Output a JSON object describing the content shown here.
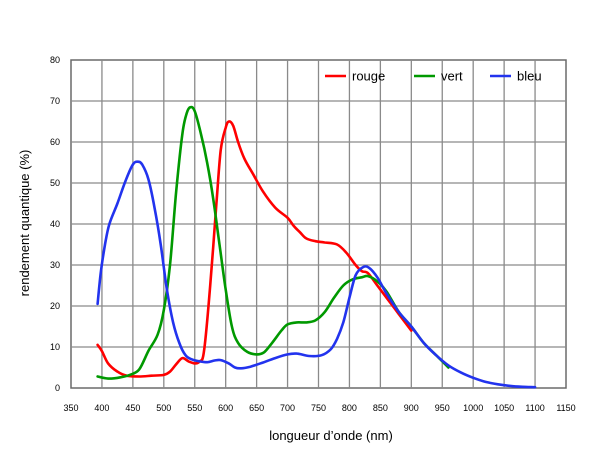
{
  "chart_data": {
    "type": "line",
    "xlabel": "longueur d’onde (nm)",
    "ylabel": "rendement quantique (%)",
    "xlim": [
      350,
      1150
    ],
    "ylim": [
      0,
      80
    ],
    "x_ticks": [
      350,
      400,
      450,
      500,
      550,
      600,
      650,
      700,
      750,
      800,
      850,
      900,
      950,
      1000,
      1050,
      1100,
      1150
    ],
    "y_ticks": [
      0,
      10,
      20,
      30,
      40,
      50,
      60,
      70,
      80
    ],
    "grid": true,
    "legend_position": "top-right",
    "series": [
      {
        "name": "rouge",
        "color": "#ff0000",
        "points": [
          [
            393,
            10.5
          ],
          [
            400,
            9
          ],
          [
            410,
            6
          ],
          [
            425,
            4
          ],
          [
            440,
            3
          ],
          [
            460,
            2.8
          ],
          [
            480,
            3
          ],
          [
            500,
            3.2
          ],
          [
            510,
            4
          ],
          [
            520,
            5.8
          ],
          [
            530,
            7.3
          ],
          [
            540,
            6.5
          ],
          [
            550,
            6
          ],
          [
            558,
            6.5
          ],
          [
            565,
            9
          ],
          [
            575,
            25
          ],
          [
            585,
            45
          ],
          [
            592,
            58
          ],
          [
            600,
            63.5
          ],
          [
            605,
            65
          ],
          [
            612,
            64
          ],
          [
            620,
            60
          ],
          [
            630,
            56
          ],
          [
            645,
            52
          ],
          [
            660,
            48
          ],
          [
            680,
            44
          ],
          [
            700,
            41.5
          ],
          [
            710,
            39.5
          ],
          [
            720,
            38
          ],
          [
            730,
            36.5
          ],
          [
            745,
            35.8
          ],
          [
            760,
            35.5
          ],
          [
            780,
            35
          ],
          [
            795,
            33
          ],
          [
            810,
            30
          ],
          [
            820,
            28.5
          ],
          [
            830,
            28
          ],
          [
            845,
            25
          ],
          [
            860,
            22
          ],
          [
            880,
            18
          ],
          [
            900,
            14
          ]
        ]
      },
      {
        "name": "vert",
        "color": "#009900",
        "points": [
          [
            393,
            2.8
          ],
          [
            410,
            2.3
          ],
          [
            430,
            2.6
          ],
          [
            445,
            3.2
          ],
          [
            460,
            4.5
          ],
          [
            475,
            9
          ],
          [
            490,
            13
          ],
          [
            500,
            19
          ],
          [
            510,
            30
          ],
          [
            520,
            48
          ],
          [
            530,
            62
          ],
          [
            537,
            67
          ],
          [
            543,
            68.5
          ],
          [
            550,
            67.5
          ],
          [
            560,
            62
          ],
          [
            570,
            55
          ],
          [
            580,
            46
          ],
          [
            590,
            35
          ],
          [
            600,
            24
          ],
          [
            610,
            15
          ],
          [
            620,
            11
          ],
          [
            635,
            8.8
          ],
          [
            650,
            8.2
          ],
          [
            662,
            8.7
          ],
          [
            675,
            11
          ],
          [
            690,
            14
          ],
          [
            700,
            15.5
          ],
          [
            715,
            16
          ],
          [
            730,
            16
          ],
          [
            745,
            16.5
          ],
          [
            760,
            18.5
          ],
          [
            775,
            22
          ],
          [
            790,
            25
          ],
          [
            805,
            26.5
          ],
          [
            820,
            27
          ],
          [
            830,
            27.3
          ],
          [
            845,
            26
          ],
          [
            860,
            23.5
          ],
          [
            880,
            18.5
          ],
          [
            900,
            15
          ],
          [
            920,
            11
          ],
          [
            940,
            8
          ],
          [
            960,
            5
          ]
        ]
      },
      {
        "name": "bleu",
        "color": "#2233ee",
        "points": [
          [
            393,
            20.5
          ],
          [
            398,
            28
          ],
          [
            405,
            35
          ],
          [
            412,
            40
          ],
          [
            425,
            45
          ],
          [
            438,
            50.5
          ],
          [
            450,
            54.5
          ],
          [
            458,
            55.2
          ],
          [
            465,
            54.5
          ],
          [
            475,
            51
          ],
          [
            485,
            44
          ],
          [
            495,
            35
          ],
          [
            505,
            24
          ],
          [
            515,
            16
          ],
          [
            525,
            11
          ],
          [
            535,
            8
          ],
          [
            545,
            7
          ],
          [
            558,
            6.5
          ],
          [
            570,
            6.3
          ],
          [
            582,
            6.7
          ],
          [
            592,
            6.8
          ],
          [
            605,
            6
          ],
          [
            615,
            5
          ],
          [
            625,
            4.8
          ],
          [
            640,
            5.2
          ],
          [
            660,
            6.2
          ],
          [
            680,
            7.3
          ],
          [
            700,
            8.2
          ],
          [
            715,
            8.4
          ],
          [
            735,
            7.8
          ],
          [
            755,
            8
          ],
          [
            770,
            9.5
          ],
          [
            780,
            12
          ],
          [
            790,
            16
          ],
          [
            800,
            22
          ],
          [
            810,
            27.5
          ],
          [
            822,
            29.5
          ],
          [
            832,
            29.3
          ],
          [
            845,
            27
          ],
          [
            860,
            23
          ],
          [
            880,
            18.5
          ],
          [
            900,
            15
          ],
          [
            920,
            11
          ],
          [
            940,
            8
          ],
          [
            960,
            5.5
          ],
          [
            980,
            3.8
          ],
          [
            1000,
            2.5
          ],
          [
            1020,
            1.5
          ],
          [
            1040,
            0.9
          ],
          [
            1060,
            0.5
          ],
          [
            1080,
            0.3
          ],
          [
            1100,
            0.2
          ]
        ]
      }
    ]
  }
}
